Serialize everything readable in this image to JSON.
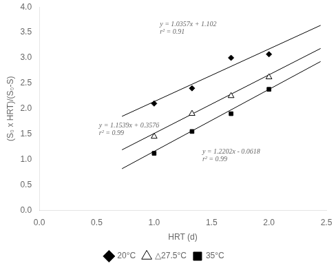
{
  "chart_data": {
    "type": "scatter",
    "x_label": "HRT (d)",
    "y_label": "(S₀ x HRT)/(S₀-S)",
    "xlim": [
      0.0,
      2.5
    ],
    "ylim": [
      0,
      4
    ],
    "xticks": [
      {
        "value": 0,
        "label": "0.0"
      },
      0.5,
      {
        "value": 1,
        "label": "1.0"
      },
      1.5,
      {
        "value": 2,
        "label": "2.0"
      },
      2.5
    ],
    "yticks": [
      {
        "value": 0,
        "label": "0.0"
      },
      0.5,
      {
        "value": 1,
        "label": "1.0"
      },
      1.5,
      {
        "value": 2,
        "label": "2.0"
      },
      2.5,
      {
        "value": 3,
        "label": "3.0"
      },
      3.5,
      {
        "value": 4,
        "label": "4.0"
      }
    ],
    "grid": false,
    "legend": "bottom",
    "series": [
      {
        "name": "20°C",
        "marker": "diamond",
        "color": "#000000",
        "x": [
          1.0,
          1.33,
          1.67,
          2.0
        ],
        "values": [
          2.1,
          2.4,
          3.0,
          3.07
        ],
        "fit": {
          "type": "line",
          "color": "#000000",
          "x": [
            0.72,
            2.45
          ],
          "values": [
            1.847704,
            3.639465
          ]
        }
      },
      {
        "name": "△27.5°C",
        "marker": "triangle-open",
        "color": "#000000",
        "x": [
          1.0,
          1.33,
          1.67,
          2.0
        ],
        "values": [
          1.45,
          1.9,
          2.25,
          2.62
        ],
        "fit": {
          "type": "line",
          "color": "#000000",
          "x": [
            0.72,
            2.45
          ],
          "values": [
            1.188408,
            3.184655
          ]
        }
      },
      {
        "name": "35°C",
        "marker": "square",
        "color": "#000000",
        "x": [
          1.0,
          1.33,
          1.67,
          2.0
        ],
        "values": [
          1.12,
          1.55,
          1.9,
          2.38
        ],
        "fit": {
          "type": "line",
          "color": "#000000",
          "x": [
            0.72,
            2.45
          ],
          "values": [
            0.816744,
            2.92769
          ]
        }
      }
    ],
    "annotations": [
      {
        "text": [
          "y = 1.0357x + 1.102",
          "r² = 0.91"
        ],
        "x": 1.05,
        "y": 3.72
      },
      {
        "text": [
          "y = 1.1539x + 0.3576",
          "r² = 0.99"
        ],
        "x": 0.52,
        "y": 1.73
      },
      {
        "text": [
          "y = 1.2202x - 0.0618",
          "r² = 0.99"
        ],
        "x": 1.42,
        "y": 1.22
      }
    ]
  }
}
